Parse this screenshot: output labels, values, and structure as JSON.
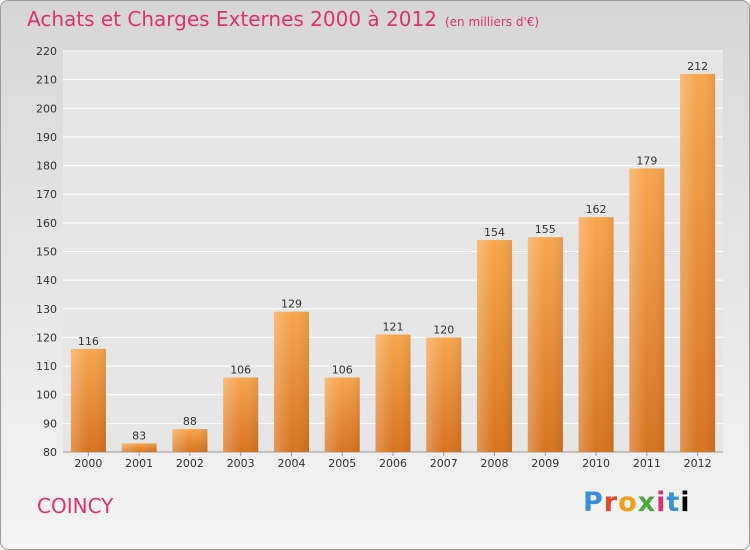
{
  "header": {
    "title": "Achats et Charges Externes 2000 à 2012",
    "subtitle": "(en milliers d'€)"
  },
  "footer": {
    "location": "COINCY",
    "brand_letters": [
      "P",
      "r",
      "o",
      "x",
      "i",
      "t",
      "i"
    ]
  },
  "colors": {
    "title": "#e0316a",
    "bar_light": "#f7a64e",
    "bar_dark": "#d7731f",
    "grid": "#ffffff"
  },
  "chart_data": {
    "type": "bar",
    "categories": [
      "2000",
      "2001",
      "2002",
      "2003",
      "2004",
      "2005",
      "2006",
      "2007",
      "2008",
      "2009",
      "2010",
      "2011",
      "2012"
    ],
    "values": [
      116,
      83,
      88,
      106,
      129,
      106,
      121,
      120,
      154,
      155,
      162,
      179,
      212
    ],
    "title": "Achats et Charges Externes 2000 à 2012",
    "subtitle": "(en milliers d'€)",
    "ylim": [
      80,
      220
    ],
    "yticks": [
      80,
      90,
      100,
      110,
      120,
      130,
      140,
      150,
      160,
      170,
      180,
      190,
      200,
      210,
      220
    ],
    "grid": true
  }
}
